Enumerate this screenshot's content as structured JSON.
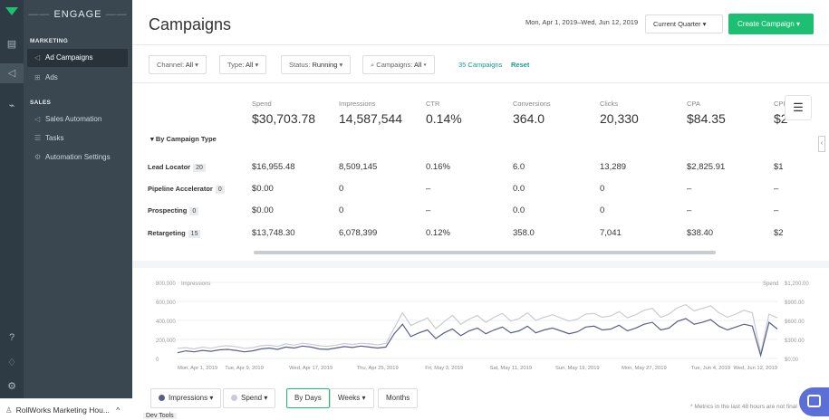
{
  "rail": {
    "icons": [
      "logo-icon",
      "calendar-icon",
      "megaphone-icon",
      "chart-icon",
      "help-icon",
      "bell-icon",
      "gear-icon"
    ]
  },
  "sidebar": {
    "brand": "ENGAGE",
    "sections": [
      {
        "title": "MARKETING",
        "items": [
          {
            "label": "Ad Campaigns",
            "icon": "megaphone-icon",
            "active": true
          },
          {
            "label": "Ads",
            "icon": "grid-icon",
            "active": false
          }
        ]
      },
      {
        "title": "SALES",
        "items": [
          {
            "label": "Sales Automation",
            "icon": "megaphone-icon",
            "active": false
          },
          {
            "label": "Tasks",
            "icon": "list-icon",
            "active": false
          },
          {
            "label": "Automation Settings",
            "icon": "gear-icon",
            "active": false
          }
        ]
      }
    ],
    "footer_label": "RollWorks Marketing Hou..."
  },
  "header": {
    "title": "Campaigns",
    "date_range": "Mon, Apr 1, 2019–Wed, Jun 12, 2019",
    "quarter": "Current Quarter",
    "create_label": "Create Campaign"
  },
  "filters": {
    "channel_label": "Channel:",
    "channel_value": "All",
    "type_label": "Type:",
    "type_value": "All",
    "status_label": "Status:",
    "status_value": "Running",
    "campaigns_label": "Campaigns:",
    "campaigns_value": "All",
    "count": "35 Campaigns",
    "reset": "Reset"
  },
  "table": {
    "group_label": "By Campaign Type",
    "headers": [
      {
        "label": "Spend",
        "total": "$30,703.78"
      },
      {
        "label": "Impressions",
        "total": "14,587,544"
      },
      {
        "label": "CTR",
        "total": "0.14%"
      },
      {
        "label": "Conversions",
        "total": "364.0"
      },
      {
        "label": "Clicks",
        "total": "20,330"
      },
      {
        "label": "CPA",
        "total": "$84.35"
      },
      {
        "label": "CPI",
        "total": "$2"
      }
    ],
    "rows": [
      {
        "name": "Lead Locator",
        "count": "20",
        "values": [
          "$16,955.48",
          "8,509,145",
          "0.16%",
          "6.0",
          "13,289",
          "$2,825.91",
          "$1"
        ]
      },
      {
        "name": "Pipeline Accelerator",
        "count": "0",
        "values": [
          "$0.00",
          "0",
          "–",
          "0.0",
          "0",
          "–",
          "–"
        ]
      },
      {
        "name": "Prospecting",
        "count": "0",
        "values": [
          "$0.00",
          "0",
          "–",
          "0.0",
          "0",
          "–",
          "–"
        ]
      },
      {
        "name": "Retargeting",
        "count": "15",
        "values": [
          "$13,748.30",
          "6,078,399",
          "0.12%",
          "358.0",
          "7,041",
          "$38.40",
          "$2"
        ]
      }
    ]
  },
  "chart_data": {
    "type": "line",
    "title": "",
    "left_axis_label": "Impressions",
    "right_axis_label": "Spend",
    "left_ticks": [
      "800,000",
      "600,000",
      "400,000",
      "200,000",
      "0"
    ],
    "right_ticks": [
      "$1,200.00",
      "$900.00",
      "$600.00",
      "$300.00",
      "$0.00"
    ],
    "ylim_left": [
      0,
      800000
    ],
    "ylim_right": [
      0,
      1200
    ],
    "x_ticks": [
      "Mon, Apr 1, 2019",
      "Tue, Apr 9, 2019",
      "Wed, Apr 17, 2019",
      "Thu, Apr 25, 2019",
      "Fri, May 3, 2019",
      "Sat, May 11, 2019",
      "Sun, May 19, 2019",
      "Mon, May 27, 2019",
      "Tue, Jun 4, 2019",
      "Wed, Jun 12, 2019"
    ],
    "series": [
      {
        "name": "Impressions",
        "color": "#5a5f8a",
        "axis": "left",
        "values": [
          60000,
          80000,
          70000,
          85000,
          75000,
          90000,
          95000,
          85000,
          70000,
          80000,
          100000,
          110000,
          95000,
          120000,
          110000,
          130000,
          120000,
          100000,
          95000,
          110000,
          125000,
          115000,
          130000,
          120000,
          110000,
          120000,
          260000,
          360000,
          230000,
          270000,
          300000,
          210000,
          270000,
          310000,
          240000,
          290000,
          320000,
          260000,
          300000,
          330000,
          270000,
          290000,
          340000,
          270000,
          300000,
          320000,
          290000,
          260000,
          280000,
          330000,
          340000,
          300000,
          310000,
          350000,
          290000,
          320000,
          360000,
          380000,
          300000,
          320000,
          390000,
          420000,
          360000,
          380000,
          410000,
          340000,
          300000,
          330000,
          360000,
          340000,
          30000,
          380000,
          310000
        ]
      },
      {
        "name": "Spend",
        "color": "#c9ccd6",
        "axis": "right",
        "values": [
          160,
          170,
          150,
          180,
          160,
          190,
          200,
          185,
          160,
          170,
          200,
          210,
          190,
          230,
          210,
          240,
          225,
          200,
          190,
          210,
          235,
          220,
          240,
          230,
          215,
          235,
          480,
          720,
          520,
          580,
          640,
          470,
          580,
          680,
          540,
          620,
          680,
          570,
          650,
          710,
          590,
          630,
          720,
          600,
          650,
          690,
          640,
          590,
          620,
          700,
          710,
          650,
          670,
          740,
          640,
          690,
          760,
          790,
          650,
          700,
          800,
          850,
          750,
          790,
          830,
          720,
          650,
          700,
          760,
          720,
          80,
          700,
          640
        ]
      }
    ],
    "legend": [
      "Impressions",
      "Spend"
    ]
  },
  "chart_controls": {
    "impressions": "Impressions",
    "spend": "Spend",
    "by_days": "By Days",
    "weeks": "Weeks",
    "months": "Months"
  },
  "footnote": "* Metrics in the last 48 hours are not final",
  "devtools": "Dev Tools"
}
